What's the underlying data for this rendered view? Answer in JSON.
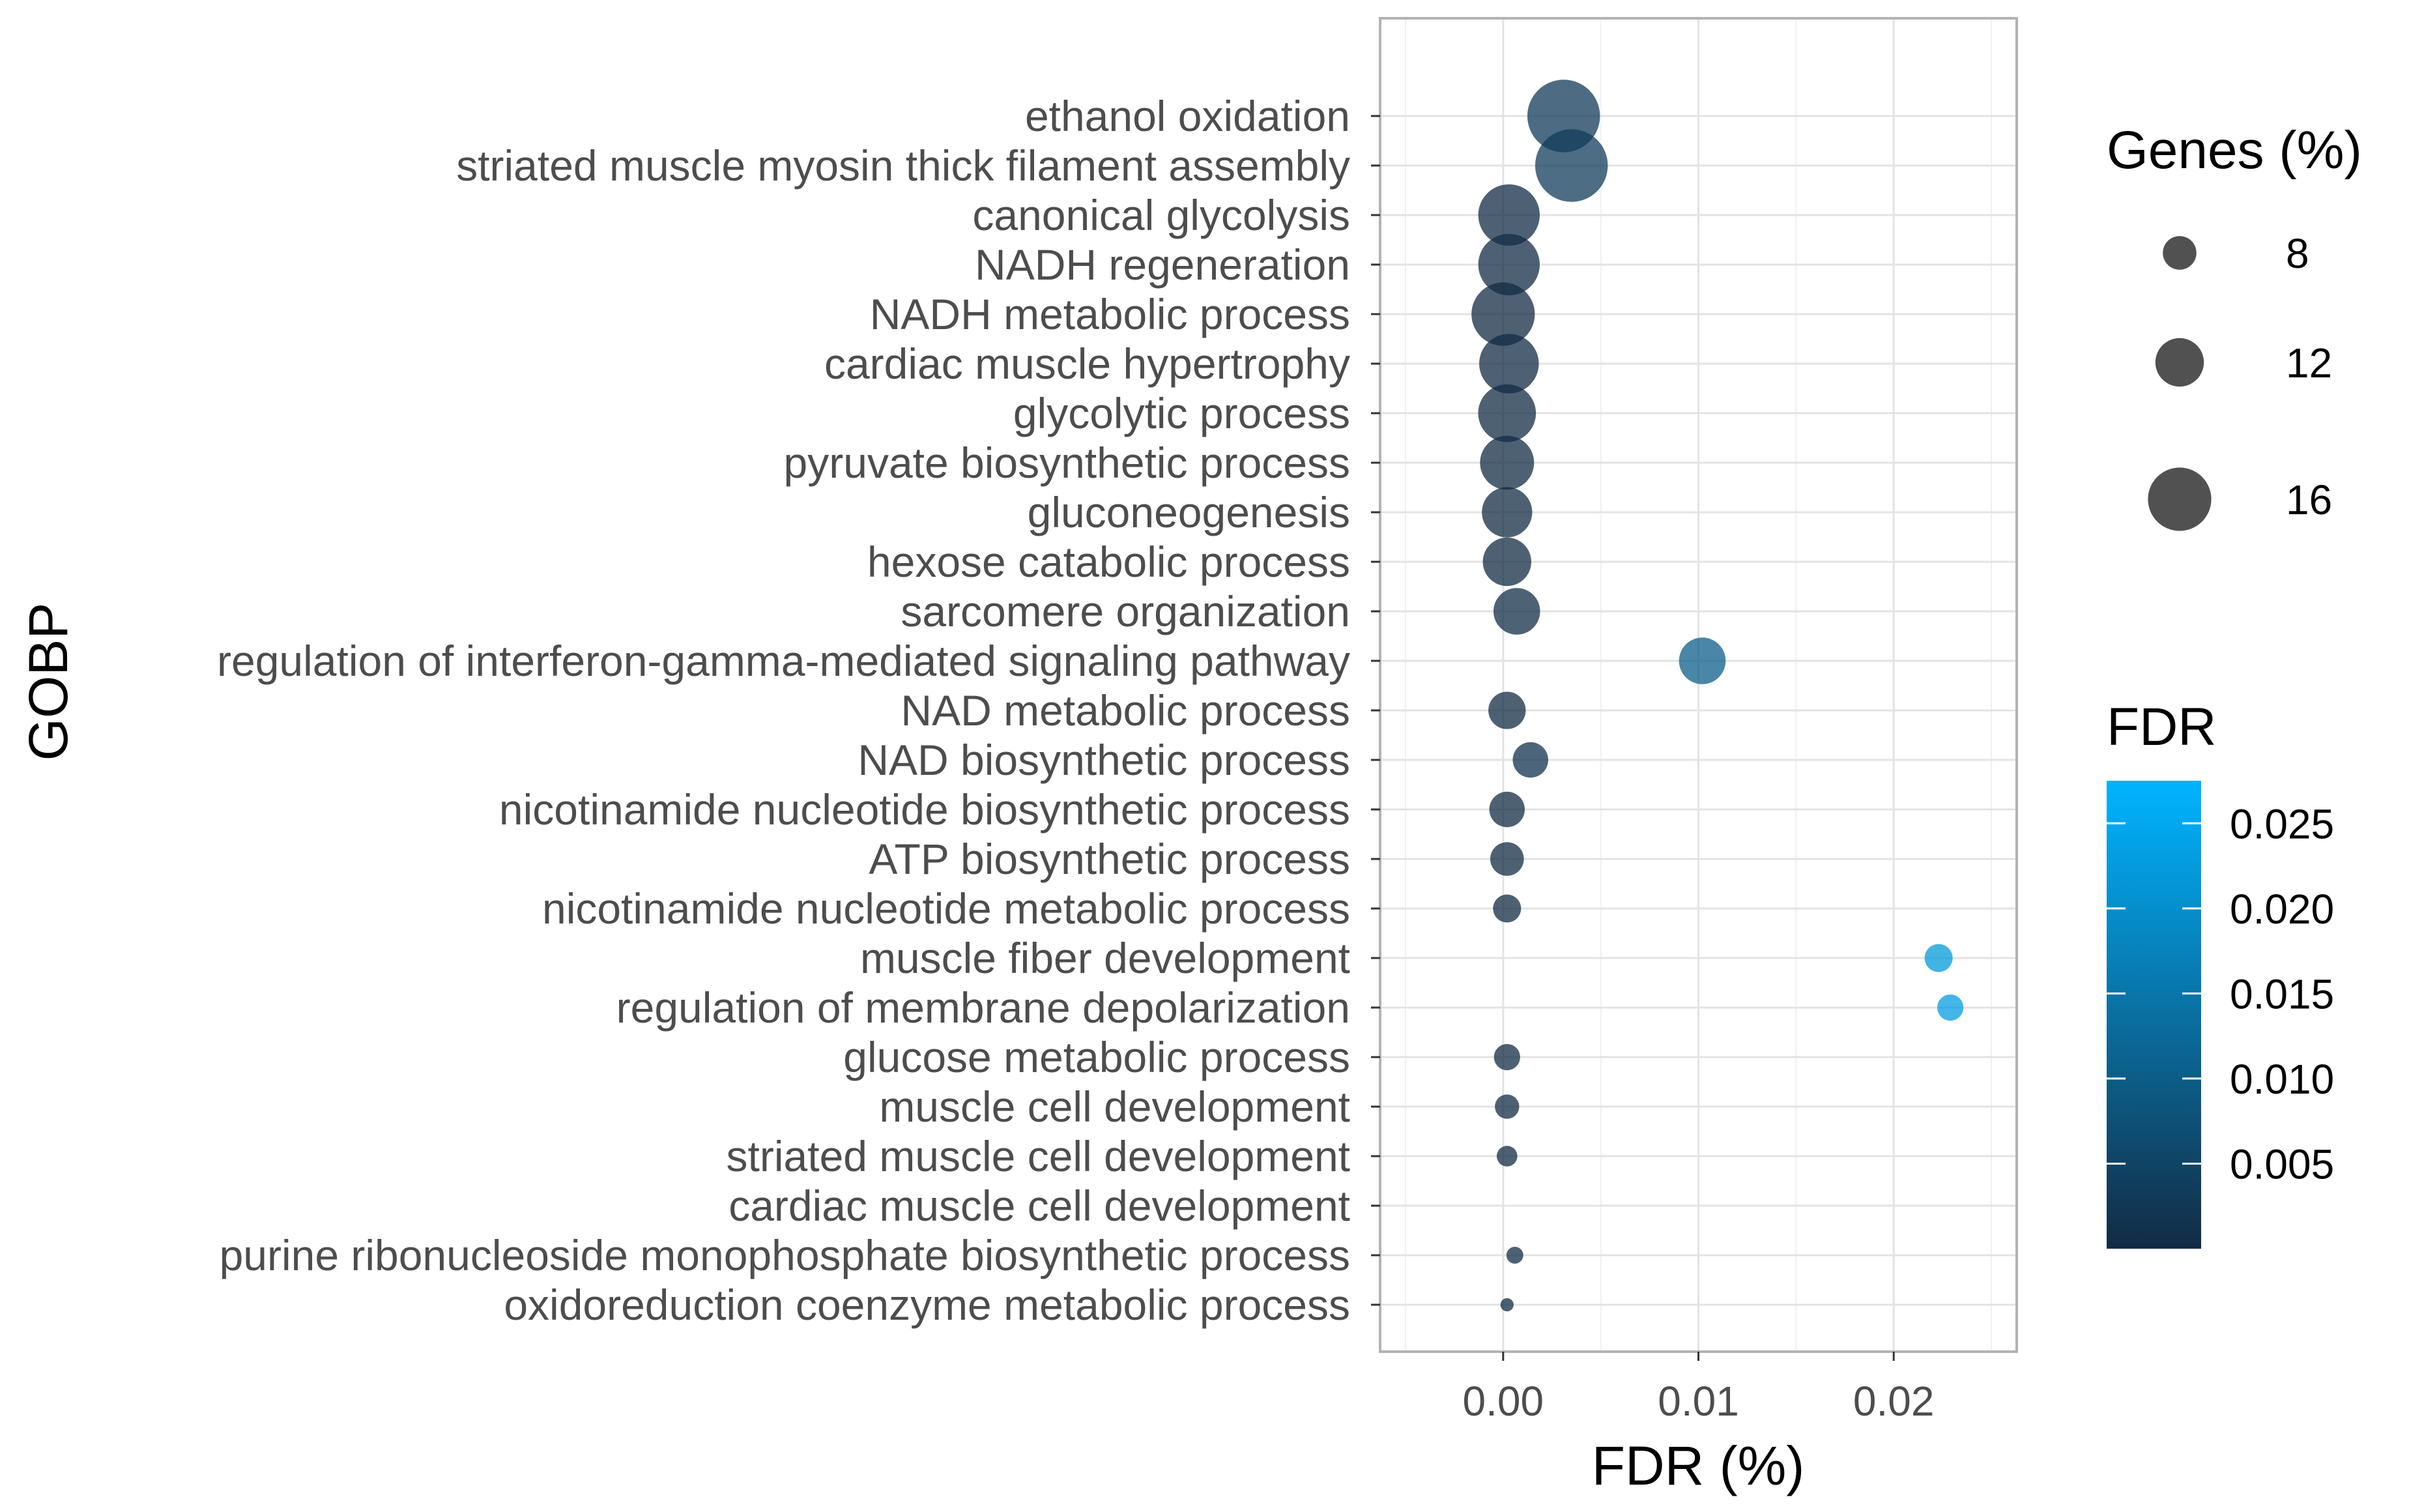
{
  "chart_data": {
    "type": "scatter",
    "subtype": "bubble",
    "xlabel": "FDR (%)",
    "ylabel": "GOBP",
    "xlim": [
      -0.0063,
      0.0263
    ],
    "x_ticks": [
      0.0,
      0.01,
      0.02
    ],
    "x_tick_labels": [
      "0.00",
      "0.01",
      "0.02"
    ],
    "grid": true,
    "categories": [
      "ethanol oxidation",
      "striated muscle myosin thick filament assembly",
      "canonical glycolysis",
      "NADH regeneration",
      "NADH metabolic process",
      "cardiac muscle hypertrophy",
      "glycolytic process",
      "pyruvate biosynthetic process",
      "gluconeogenesis",
      "hexose catabolic process",
      "sarcomere organization",
      "regulation of interferon-gamma-mediated signaling pathway",
      "NAD metabolic process",
      "NAD biosynthetic process",
      "nicotinamide nucleotide biosynthetic process",
      "ATP biosynthetic process",
      "nicotinamide nucleotide metabolic process",
      "muscle fiber development",
      "regulation of membrane depolarization",
      "glucose metabolic process",
      "muscle cell development",
      "striated muscle cell development",
      "cardiac muscle cell development",
      "purine ribonucleoside monophosphate biosynthetic process",
      "oxidoreduction coenzyme metabolic process"
    ],
    "points": [
      {
        "x": 0.0031,
        "genes_pct": 18.5,
        "fdr": 0.0031
      },
      {
        "x": 0.0035,
        "genes_pct": 18.5,
        "fdr": 0.0035
      },
      {
        "x": 0.0003,
        "genes_pct": 15.5,
        "fdr": 0.0003
      },
      {
        "x": 0.0003,
        "genes_pct": 15.5,
        "fdr": 0.0003
      },
      {
        "x": 0.0,
        "genes_pct": 16.0,
        "fdr": 0.0
      },
      {
        "x": 0.0003,
        "genes_pct": 15.0,
        "fdr": 0.0003
      },
      {
        "x": 0.0002,
        "genes_pct": 14.5,
        "fdr": 0.0002
      },
      {
        "x": 0.0002,
        "genes_pct": 13.5,
        "fdr": 0.0002
      },
      {
        "x": 0.0002,
        "genes_pct": 12.5,
        "fdr": 0.0002
      },
      {
        "x": 0.0002,
        "genes_pct": 12.0,
        "fdr": 0.0002
      },
      {
        "x": 0.0007,
        "genes_pct": 11.5,
        "fdr": 0.0007
      },
      {
        "x": 0.0102,
        "genes_pct": 11.5,
        "fdr": 0.0102
      },
      {
        "x": 0.0002,
        "genes_pct": 9.0,
        "fdr": 0.0002
      },
      {
        "x": 0.0014,
        "genes_pct": 8.5,
        "fdr": 0.0014
      },
      {
        "x": 0.0002,
        "genes_pct": 8.5,
        "fdr": 0.0002
      },
      {
        "x": 0.0002,
        "genes_pct": 8.0,
        "fdr": 0.0002
      },
      {
        "x": 0.0002,
        "genes_pct": 6.5,
        "fdr": 0.0002
      },
      {
        "x": 0.0223,
        "genes_pct": 6.5,
        "fdr": 0.0223
      },
      {
        "x": 0.0229,
        "genes_pct": 6.0,
        "fdr": 0.0229
      },
      {
        "x": 0.0002,
        "genes_pct": 6.0,
        "fdr": 0.0002
      },
      {
        "x": 0.0002,
        "genes_pct": 5.5,
        "fdr": 0.0002
      },
      {
        "x": 0.0002,
        "genes_pct": 4.5,
        "fdr": 0.0002
      },
      null,
      {
        "x": 0.0006,
        "genes_pct": 3.5,
        "fdr": 0.0006
      },
      {
        "x": 0.0002,
        "genes_pct": 2.5,
        "fdr": 0.0002
      }
    ],
    "size_legend": {
      "title": "Genes (%)",
      "breaks": [
        8,
        12,
        16
      ],
      "labels": [
        "8",
        "12",
        "16"
      ]
    },
    "color_legend": {
      "title": "FDR",
      "low_color": "#132b43",
      "high_color": "#00b4ff",
      "limits": [
        0.0,
        0.0275
      ],
      "breaks": [
        0.005,
        0.01,
        0.015,
        0.02,
        0.025
      ],
      "labels": [
        "0.005",
        "0.010",
        "0.015",
        "0.020",
        "0.025"
      ]
    }
  }
}
